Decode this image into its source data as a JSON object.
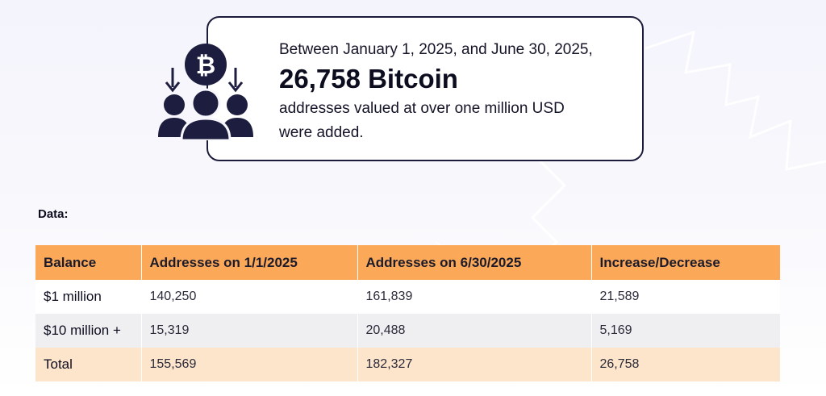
{
  "callout": {
    "intro": "Between January 1, 2025, and June 30, 2025,",
    "headline": "26,758 Bitcoin",
    "detail_line1": "addresses valued at over one million USD",
    "detail_line2": "were added.",
    "icon_name": "bitcoin-users-icon",
    "icon_symbol": "₿"
  },
  "data_label": "Data:",
  "table": {
    "headers": [
      "Balance",
      "Addresses on 1/1/2025",
      "Addresses on 6/30/2025",
      "Increase/Decrease"
    ],
    "rows": [
      [
        "$1 million",
        "140,250",
        "161,839",
        "21,589"
      ],
      [
        "$10 million +",
        "15,319",
        "20,488",
        "5,169"
      ],
      [
        "Total",
        "155,569",
        "182,327",
        "26,758"
      ]
    ]
  },
  "colors": {
    "header_orange": "#fba859",
    "total_peach": "#fde5cb",
    "stripe_grey": "#efeff1",
    "icon_navy": "#1d1d3f"
  }
}
